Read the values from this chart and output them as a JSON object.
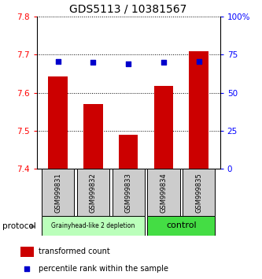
{
  "title": "GDS5113 / 10381567",
  "samples": [
    "GSM999831",
    "GSM999832",
    "GSM999833",
    "GSM999834",
    "GSM999835"
  ],
  "bar_values": [
    7.643,
    7.571,
    7.49,
    7.618,
    7.71
  ],
  "percentile_values": [
    70.5,
    70.0,
    69.0,
    70.0,
    70.5
  ],
  "ylim_left": [
    7.4,
    7.8
  ],
  "ylim_right": [
    0,
    100
  ],
  "yticks_left": [
    7.4,
    7.5,
    7.6,
    7.7,
    7.8
  ],
  "yticks_right": [
    0,
    25,
    50,
    75,
    100
  ],
  "ytick_labels_right": [
    "0",
    "25",
    "50",
    "75",
    "100%"
  ],
  "bar_color": "#cc0000",
  "dot_color": "#0000cc",
  "bg_color": "#ffffff",
  "group1_label": "Grainyhead-like 2 depletion",
  "group2_label": "control",
  "group1_indices": [
    0,
    1,
    2
  ],
  "group2_indices": [
    3,
    4
  ],
  "group1_color": "#bbffbb",
  "group2_color": "#44dd44",
  "protocol_label": "protocol",
  "legend_bar_label": "transformed count",
  "legend_dot_label": "percentile rank within the sample",
  "sample_box_color": "#cccccc",
  "title_fontsize": 10,
  "tick_fontsize": 7.5,
  "label_fontsize": 7
}
